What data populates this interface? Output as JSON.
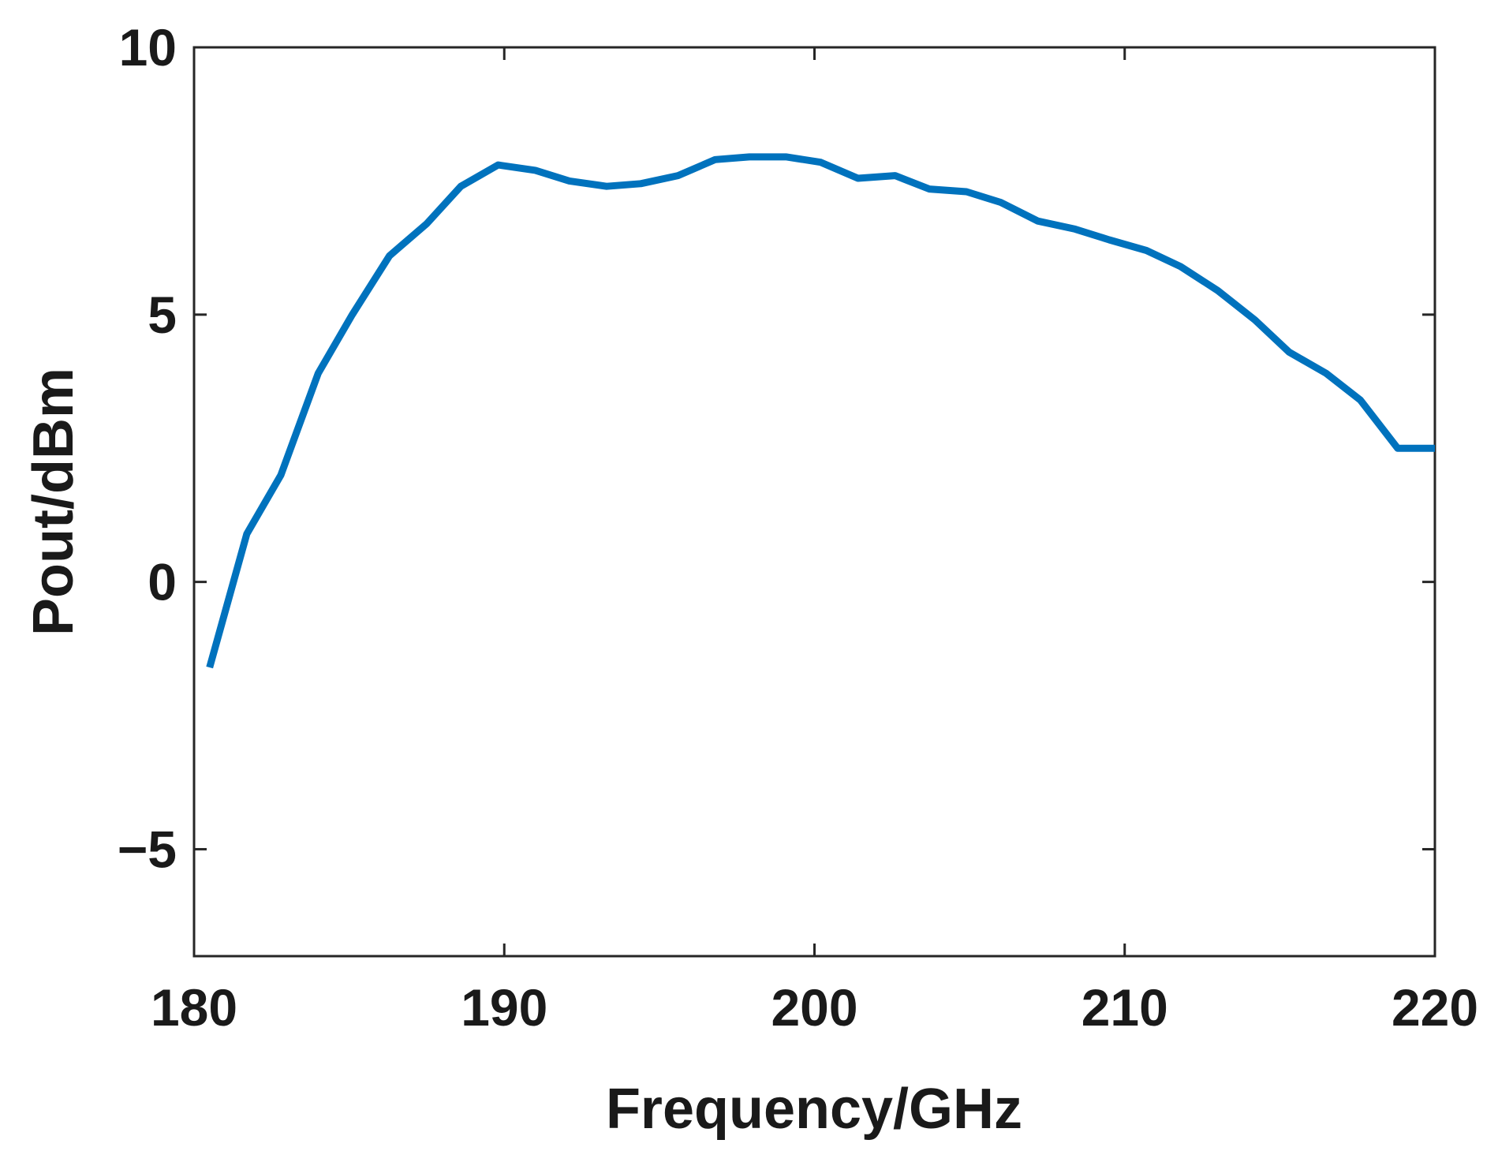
{
  "chart_data": {
    "type": "line",
    "title": "",
    "xlabel": "Frequency/GHz",
    "ylabel": "Pout/dBm",
    "xlim": [
      180,
      220
    ],
    "ylim": [
      -7,
      10
    ],
    "xticks": [
      180,
      190,
      200,
      210,
      220
    ],
    "xtick_labels": [
      "180",
      "190",
      "200",
      "210",
      "220"
    ],
    "yticks": [
      -5,
      0,
      5,
      10
    ],
    "ytick_labels": [
      "−5",
      "0",
      "5",
      "10"
    ],
    "grid": false,
    "legend": "none",
    "series": [
      {
        "color": "#0072BD",
        "x": [
          180.5,
          181.7,
          182.8,
          184.0,
          185.1,
          186.3,
          187.5,
          188.6,
          189.8,
          191.0,
          192.1,
          193.3,
          194.4,
          195.6,
          196.8,
          197.9,
          199.1,
          200.2,
          201.4,
          202.6,
          203.7,
          204.9,
          206.0,
          207.2,
          208.4,
          209.5,
          210.7,
          211.8,
          213.0,
          214.2,
          215.3,
          216.5,
          217.6,
          218.8,
          220.0
        ],
        "values": [
          -1.6,
          0.9,
          2.0,
          3.9,
          5.0,
          6.1,
          6.7,
          7.4,
          7.8,
          7.7,
          7.5,
          7.4,
          7.45,
          7.6,
          7.9,
          7.95,
          7.95,
          7.85,
          7.55,
          7.6,
          7.35,
          7.3,
          7.1,
          6.75,
          6.6,
          6.4,
          6.2,
          5.9,
          5.45,
          4.9,
          4.3,
          3.9,
          3.4,
          2.5,
          2.5
        ]
      }
    ]
  }
}
